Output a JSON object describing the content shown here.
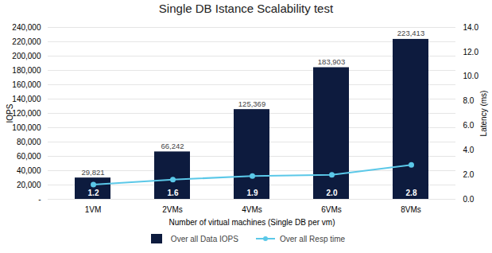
{
  "chart_data": {
    "type": "bar",
    "title": "Single DB Istance Scalability test",
    "categories": [
      "1VM",
      "2VMs",
      "4VMs",
      "6VMs",
      "8VMs"
    ],
    "xlabel": "Number of virtual machines (Single DB per vm)",
    "ylabel": "IOPS",
    "y2label": "Latency (ms)",
    "series": [
      {
        "name": "Over all Data IOPS",
        "type": "bar",
        "color": "#0d1b3e",
        "values": [
          29821,
          66242,
          125369,
          183903,
          223413
        ],
        "value_labels": [
          "29,821",
          "66,242",
          "125,369",
          "183,903",
          "223,413"
        ],
        "data_labels": true
      },
      {
        "name": "Over all Resp time",
        "type": "line",
        "axis": "y2",
        "color": "#5bc8e8",
        "marker": "circle",
        "values": [
          1.2,
          1.6,
          1.9,
          2.0,
          2.8
        ],
        "value_labels": [
          "1.2",
          "1.6",
          "1.9",
          "2.0",
          "2.8"
        ],
        "data_labels": true
      }
    ],
    "ylim": [
      0,
      240000
    ],
    "yticks": [
      {
        "value": 0,
        "label": "-"
      },
      {
        "value": 20000,
        "label": "20,000"
      },
      {
        "value": 40000,
        "label": "40,000"
      },
      {
        "value": 60000,
        "label": "60,000"
      },
      {
        "value": 80000,
        "label": "80,000"
      },
      {
        "value": 100000,
        "label": "100,000"
      },
      {
        "value": 120000,
        "label": "120,000"
      },
      {
        "value": 140000,
        "label": "140,000"
      },
      {
        "value": 160000,
        "label": "160,000"
      },
      {
        "value": 180000,
        "label": "180,000"
      },
      {
        "value": 200000,
        "label": "200,000"
      },
      {
        "value": 220000,
        "label": "220,000"
      },
      {
        "value": 240000,
        "label": "240,000"
      }
    ],
    "y2lim": [
      0,
      14.0
    ],
    "y2ticks": [
      {
        "value": 0,
        "label": "0.0"
      },
      {
        "value": 2,
        "label": "2.0"
      },
      {
        "value": 4,
        "label": "4.0"
      },
      {
        "value": 6,
        "label": "6.0"
      },
      {
        "value": 8,
        "label": "8.0"
      },
      {
        "value": 10,
        "label": "10.0"
      },
      {
        "value": 12,
        "label": "12.0"
      },
      {
        "value": 14,
        "label": "14.0"
      }
    ],
    "grid": true,
    "legend": "bottom"
  }
}
